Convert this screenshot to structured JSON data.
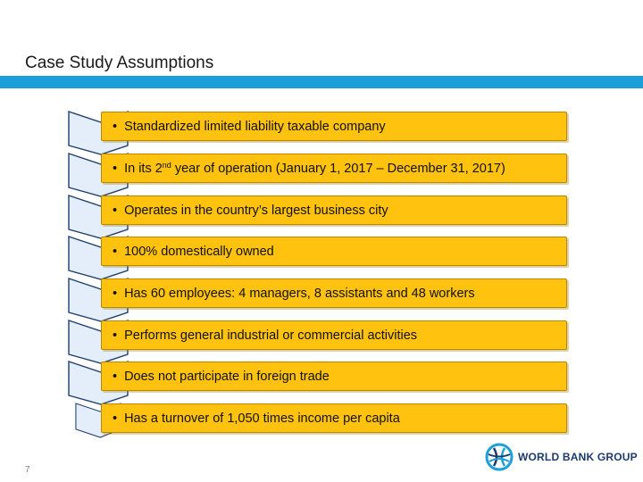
{
  "title": "Case Study Assumptions",
  "items": [
    {
      "text": "Standardized limited liability taxable company"
    },
    {
      "text_pre": "In its 2",
      "sup": "nd",
      "text_post": " year of operation (January 1, 2017 – December 31, 2017)"
    },
    {
      "text": "Operates in the country’s largest business city"
    },
    {
      "text": "100% domestically owned"
    },
    {
      "text": "Has 60 employees: 4 managers, 8 assistants and 48 workers"
    },
    {
      "text": "Performs general industrial or commercial activities"
    },
    {
      "text": "Does not participate in foreign trade"
    },
    {
      "text": "Has a turnover of 1,050 times income per capita"
    }
  ],
  "bullet": "•",
  "page_number": "7",
  "logo": {
    "text": "WORLD BANK GROUP"
  },
  "colors": {
    "accent_bar": "#1a9fd9",
    "box_fill": "#ffc20e",
    "chevron_fill": "#e4eefb",
    "chevron_stroke": "#1f3f6e"
  }
}
